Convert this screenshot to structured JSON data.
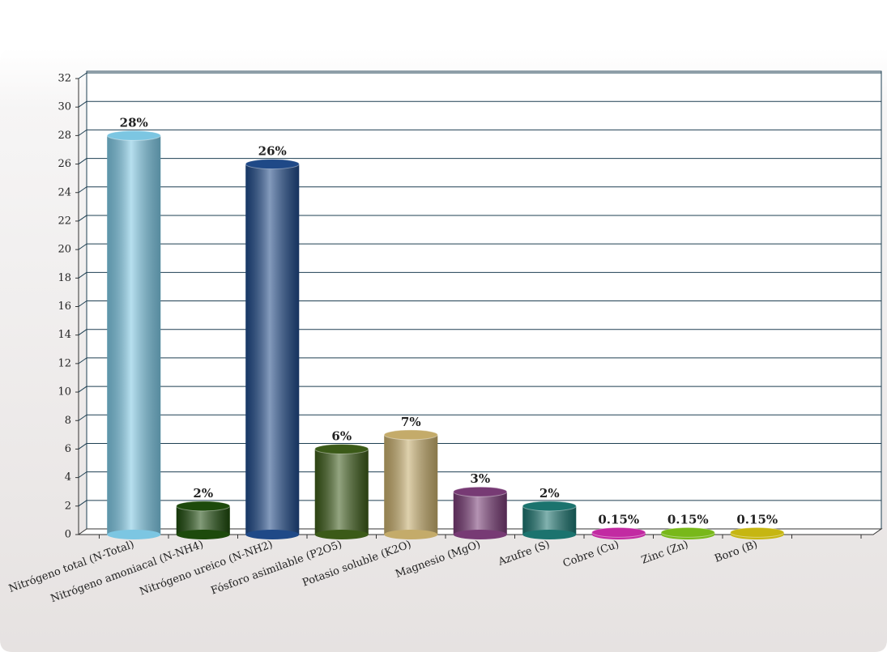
{
  "chart_data": {
    "type": "bar",
    "categories": [
      "Nitrógeno total (N-Total)",
      "Nitrógeno amoniacal (N-NH4)",
      "Nitrógeno ureico (N-NH2)",
      "Fósforo asimilable (P2O5)",
      "Potasio soluble (K2O)",
      "Magnesio (MgO)",
      "Azufre (S)",
      "Cobre (Cu)",
      "Zinc (Zn)",
      "Boro (B)"
    ],
    "values": [
      28,
      2,
      26,
      6,
      7,
      3,
      2,
      0.15,
      0.15,
      0.15
    ],
    "value_labels": [
      "28%",
      "2%",
      "26%",
      "6%",
      "7%",
      "3%",
      "2%",
      "0.15%",
      "0.15%",
      "0.15%"
    ],
    "colors": [
      "#7cc6e2",
      "#1d4a0c",
      "#1f4987",
      "#3b5a18",
      "#c4ab6a",
      "#773a74",
      "#1b736e",
      "#c22aa2",
      "#78b81a",
      "#c6b612"
    ],
    "ylim": [
      0,
      32
    ],
    "yticks": [
      0,
      2,
      4,
      6,
      8,
      10,
      12,
      14,
      16,
      18,
      20,
      22,
      24,
      26,
      28,
      30,
      32
    ],
    "grid": true
  }
}
